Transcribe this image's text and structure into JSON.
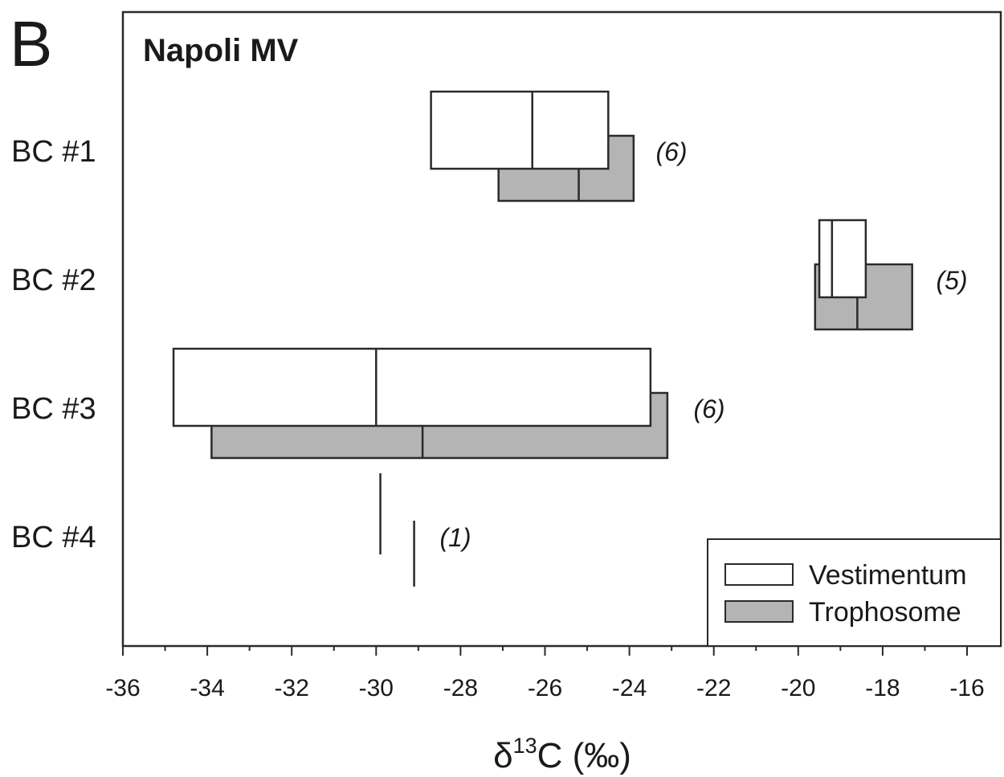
{
  "chart_data": {
    "type": "box",
    "panel_letter": "B",
    "title": "Napoli MV",
    "xlabel": {
      "prefix": "δ",
      "superscript": "13",
      "suffix": "C (‰)"
    },
    "xlim": [
      -36,
      -15
    ],
    "xticks": [
      -36,
      -34,
      -32,
      -30,
      -28,
      -26,
      -24,
      -22,
      -20,
      -18,
      -16
    ],
    "xtick_labels": [
      "-36",
      "-34",
      "-32",
      "-30",
      "-28",
      "-26",
      "-24",
      "-22",
      "-20",
      "-18",
      "-16"
    ],
    "categories": [
      "BC #1",
      "BC #2",
      "BC #3",
      "BC #4"
    ],
    "n_labels": [
      "(6)",
      "(5)",
      "(6)",
      "(1)"
    ],
    "series": [
      {
        "name": "Vestimentum",
        "color": "#ffffff",
        "values": [
          {
            "min": -28.7,
            "median": -26.3,
            "max": -24.5
          },
          {
            "min": -19.5,
            "median": -19.2,
            "max": -18.4
          },
          {
            "min": -34.8,
            "median": -30.0,
            "max": -23.5
          },
          {
            "min": -29.9,
            "median": -29.9,
            "max": -29.9
          }
        ]
      },
      {
        "name": "Trophosome",
        "color": "#b4b4b4",
        "values": [
          {
            "min": -27.1,
            "median": -25.2,
            "max": -23.9
          },
          {
            "min": -19.6,
            "median": -18.6,
            "max": -17.3
          },
          {
            "min": -33.9,
            "median": -28.9,
            "max": -23.1
          },
          {
            "min": -29.1,
            "median": -29.1,
            "max": -29.1
          }
        ]
      }
    ],
    "legend_position": "bottom-right",
    "grid": false
  }
}
